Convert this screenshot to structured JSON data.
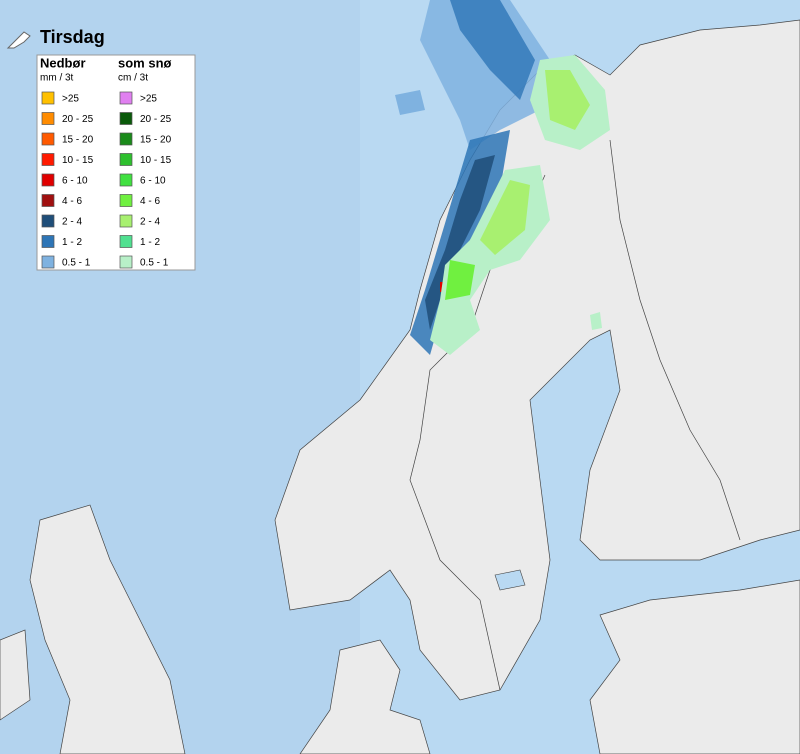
{
  "title": "Tirsdag",
  "legend": {
    "precipitation": {
      "title": "Nedbør",
      "unit": "mm / 3t",
      "items": [
        {
          "label": ">25",
          "color": "#ffc000"
        },
        {
          "label": "20 - 25",
          "color": "#ff8c00"
        },
        {
          "label": "15 - 20",
          "color": "#ff5a00"
        },
        {
          "label": "10 - 15",
          "color": "#ff1a00"
        },
        {
          "label": "6 - 10",
          "color": "#e00000"
        },
        {
          "label": "4 - 6",
          "color": "#a01010"
        },
        {
          "label": "2 - 4",
          "color": "#1f4e79"
        },
        {
          "label": "1 - 2",
          "color": "#2e75b6"
        },
        {
          "label": "0.5 - 1",
          "color": "#7fb2e0"
        }
      ]
    },
    "snow": {
      "title": "som snø",
      "unit": "cm / 3t",
      "items": [
        {
          "label": ">25",
          "color": "#e080f0"
        },
        {
          "label": "20 - 25",
          "color": "#0a5a0a"
        },
        {
          "label": "15 - 20",
          "color": "#1a8a1a"
        },
        {
          "label": "10 - 15",
          "color": "#2ec02e"
        },
        {
          "label": "6 - 10",
          "color": "#40e040"
        },
        {
          "label": "4 - 6",
          "color": "#70f040"
        },
        {
          "label": "2 - 4",
          "color": "#a8f070"
        },
        {
          "label": "1 - 2",
          "color": "#50e090"
        },
        {
          "label": "0.5 - 1",
          "color": "#b8f0c8"
        }
      ]
    }
  }
}
